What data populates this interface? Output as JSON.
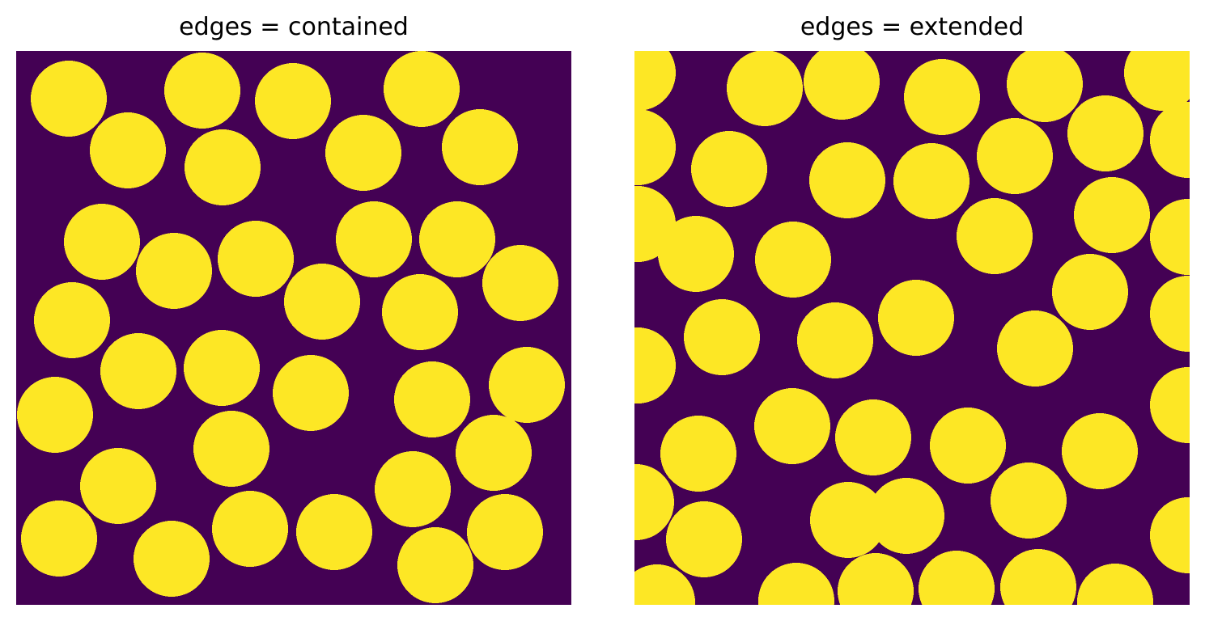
{
  "panels": [
    {
      "title": "edges = contained",
      "background_color": "#440154",
      "circle_color": "#fde725"
    },
    {
      "title": "edges = extended",
      "background_color": "#440154",
      "circle_color": "#fde725"
    }
  ]
}
